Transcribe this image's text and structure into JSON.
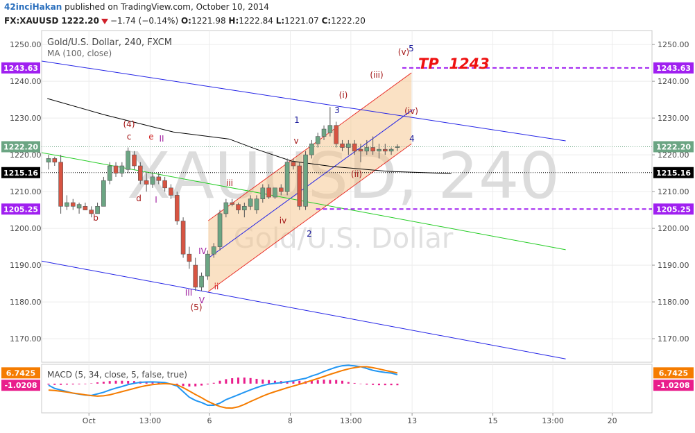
{
  "chart_data": {
    "type": "candlestick",
    "header": {
      "author": "42inciHakan",
      "published": "published on TradingView.com, October 10, 2014",
      "symbol": "FX:XAUUSD",
      "last": "1222.20",
      "change": "−1.74 (−0.14%)",
      "ohlc": [
        {
          "label": "O:",
          "value": "1221.98"
        },
        {
          "label": "H:",
          "value": "1222.84"
        },
        {
          "label": "L:",
          "value": "1221.07"
        },
        {
          "label": "C:",
          "value": "1222.20"
        }
      ]
    },
    "title": "Gold/U.S. Dollar, 240, FXCM",
    "indicator": "MA (100, close)",
    "watermark": [
      "XAUUSD, 240",
      "Gold/U.S. Dollar"
    ],
    "up_color": "#6ba583",
    "down_color": "#d75442",
    "open": [
      1218,
      1219,
      1218,
      1206,
      1207,
      1205.5,
      1206,
      1205,
      1204,
      1206,
      1213,
      1217,
      1215,
      1216,
      1220,
      1217,
      1213,
      1212,
      1214,
      1213,
      1211,
      1209,
      1202,
      1193,
      1190,
      1184,
      1187,
      1193,
      1195,
      1204,
      1207,
      1206.5,
      1205,
      1206,
      1205,
      1208,
      1211,
      1208.5,
      1211,
      1210,
      1218,
      1217,
      1206,
      1220,
      1223,
      1225,
      1226,
      1228,
      1223,
      1222,
      1223,
      1221.5,
      1221,
      1222,
      1221,
      1221.5,
      1221,
      1221.98
    ],
    "high": [
      1220,
      1219.5,
      1220,
      1209,
      1208,
      1207,
      1207,
      1206,
      1207,
      1214,
      1218,
      1218,
      1218,
      1222,
      1221,
      1218,
      1215,
      1215,
      1215,
      1214,
      1212,
      1210,
      1203,
      1195,
      1192,
      1188,
      1194,
      1196,
      1205,
      1208,
      1208,
      1207,
      1207,
      1209,
      1209,
      1212,
      1212,
      1211,
      1212,
      1219,
      1219,
      1218,
      1221,
      1224,
      1226,
      1228,
      1233,
      1229,
      1224,
      1224,
      1224,
      1223,
      1224,
      1225,
      1223,
      1223,
      1222,
      1222.84
    ],
    "low": [
      1216,
      1217,
      1204,
      1205,
      1205,
      1204,
      1205,
      1203,
      1204,
      1206,
      1212,
      1214,
      1214,
      1215,
      1216,
      1212,
      1210,
      1211,
      1212,
      1210,
      1208,
      1201,
      1192,
      1189,
      1183,
      1183,
      1186,
      1192,
      1194,
      1203,
      1206,
      1204,
      1203,
      1205,
      1204,
      1207,
      1208,
      1208,
      1209,
      1209,
      1216,
      1205,
      1205,
      1219,
      1222,
      1224,
      1225,
      1222,
      1221,
      1220,
      1220,
      1218,
      1220,
      1220,
      1219,
      1220,
      1220,
      1221.07
    ],
    "close": [
      1219,
      1218,
      1206,
      1207,
      1206,
      1206.5,
      1205,
      1204,
      1206,
      1213,
      1217,
      1215,
      1217,
      1221,
      1217,
      1213,
      1212,
      1214,
      1213,
      1211,
      1209,
      1202,
      1193,
      1191,
      1184,
      1187,
      1193,
      1195,
      1204,
      1207,
      1206.5,
      1205,
      1206,
      1208,
      1208,
      1211,
      1208.5,
      1211,
      1210,
      1218,
      1217,
      1206,
      1220,
      1223,
      1225,
      1227,
      1228,
      1223,
      1222,
      1223,
      1221,
      1221,
      1222,
      1221,
      1221.5,
      1221,
      1221.5,
      1222.2
    ],
    "xlim": [
      -1.13,
      98.6
    ],
    "xticks": [
      {
        "value": 6.6,
        "label": "Oct"
      },
      {
        "value": 16.6,
        "label": "13:00"
      },
      {
        "value": 26.3,
        "label": "6"
      },
      {
        "value": 39.5,
        "label": "8"
      },
      {
        "value": 49.4,
        "label": "13:00"
      },
      {
        "value": 59.4,
        "label": "13"
      },
      {
        "value": 72.6,
        "label": "15"
      },
      {
        "value": 82.4,
        "label": "13:00"
      },
      {
        "value": 92.1,
        "label": "20"
      }
    ],
    "ylim": [
      1163.6,
      1253.8
    ],
    "yticks": [
      {
        "value": 1170,
        "label": "1170.00"
      },
      {
        "value": 1180,
        "label": "1180.00"
      },
      {
        "value": 1190,
        "label": "1190.00"
      },
      {
        "value": 1200,
        "label": "1200.00"
      },
      {
        "value": 1210,
        "label": "1210.00"
      },
      {
        "value": 1220,
        "label": "1220.00"
      },
      {
        "value": 1230,
        "label": "1230.00"
      },
      {
        "value": 1240,
        "label": "1240.00"
      },
      {
        "value": 1250,
        "label": "1250.00"
      }
    ],
    "grid": true,
    "ma": {
      "color": "#000000",
      "points": [
        [
          -0.2,
          1235.3
        ],
        [
          9.1,
          1230.9
        ],
        [
          20.4,
          1226.2
        ],
        [
          29.5,
          1224.3
        ],
        [
          34,
          1221.5
        ],
        [
          39.7,
          1218.3
        ],
        [
          46.5,
          1216.8
        ],
        [
          55.6,
          1215.5
        ],
        [
          65.8,
          1214.9
        ]
      ]
    },
    "lines": [
      {
        "color": "#2323e6",
        "points": [
          [
            -1.13,
            1245.5
          ],
          [
            84.5,
            1223.8
          ]
        ]
      },
      {
        "color": "#2323e6",
        "points": [
          [
            -1.13,
            1191.1
          ],
          [
            84.5,
            1164.5
          ]
        ]
      },
      {
        "color": "#2323e6",
        "points": [
          [
            26.1,
            1191.9
          ],
          [
            59.5,
            1232.3
          ]
        ]
      },
      {
        "color": "#22cc22",
        "points": [
          [
            -1.13,
            1220.6
          ],
          [
            84.5,
            1194.2
          ]
        ]
      }
    ],
    "channel": {
      "color": "#e8302a",
      "fill": "#f5c48a",
      "upper": [
        [
          26.1,
          1202.1
        ],
        [
          59.3,
          1242.3
        ]
      ],
      "lower": [
        [
          26.1,
          1182.8
        ],
        [
          59.3,
          1223.0
        ]
      ]
    },
    "levels": [
      {
        "value": 1243.63,
        "label": "1243.63",
        "color": "#a020f0",
        "style": "dashed",
        "start": 57.8
      },
      {
        "value": 1222.2,
        "label": "1222.20",
        "color": "#6ba583",
        "style": "dotted"
      },
      {
        "value": 1215.16,
        "label": "1215.16",
        "color": "#000000",
        "style": "dotted"
      },
      {
        "value": 1205.25,
        "label": "1205.25",
        "color": "#a020f0",
        "style": "dashed",
        "start": 43.7
      }
    ],
    "annotations": [
      "(4)",
      "c",
      "b",
      "d",
      "e",
      "II",
      "I",
      "iii",
      "IV",
      "III",
      "V",
      "(5)",
      "ii",
      "iv",
      "2",
      "v",
      "1",
      "(i)",
      "3",
      "(iii)",
      "(v)",
      "5",
      "(iv)",
      "4",
      "(ii)",
      "TP  1243"
    ],
    "macd": {
      "title": "MACD (5, 34, close, 5, false, true)",
      "ylim": [
        -18.3,
        12.1
      ],
      "series": [
        {
          "color": "#2196f3",
          "values": [
            -1,
            -3,
            -4,
            -5,
            -6,
            -6.6,
            -7.2,
            -7.4,
            -6.4,
            -5.4,
            -4,
            -2.8,
            -1.8,
            -0.6,
            0.2,
            0.8,
            1,
            1.1,
            0.9,
            0.7,
            -0.3,
            -1.5,
            -5,
            -8.5,
            -10.5,
            -11.8,
            -13.5,
            -13.5,
            -12.2,
            -10,
            -8.5,
            -7,
            -5.4,
            -3.9,
            -2.5,
            -1.2,
            -0.3,
            0.2,
            0.6,
            1.2,
            1.7,
            2.6,
            3.3,
            4.8,
            6,
            7.6,
            9,
            10.3,
            11.2,
            11.5,
            11.1,
            10.6,
            9.5,
            8.3,
            7.6,
            7,
            6.6,
            5.6
          ]
        },
        {
          "color": "#f57c00",
          "value_label": "6.7425",
          "values": [
            -4,
            -4.3,
            -4.8,
            -5.3,
            -5.9,
            -6.4,
            -7,
            -7.5,
            -7.8,
            -7.6,
            -7,
            -6,
            -5,
            -4,
            -3,
            -2,
            -1.2,
            -0.6,
            -0.2,
            0,
            -0.2,
            -0.8,
            -2.5,
            -4.6,
            -6.8,
            -8.8,
            -11,
            -12.8,
            -14.3,
            -15.2,
            -15.3,
            -14.5,
            -13,
            -11.2,
            -9.5,
            -7.8,
            -6.3,
            -5,
            -3.8,
            -2.6,
            -1.5,
            -0.4,
            0.8,
            2,
            3.2,
            4.5,
            5.8,
            7,
            8.2,
            9.2,
            10,
            10.6,
            10.6,
            10,
            9.2,
            8.3,
            7.5,
            6.7425
          ]
        }
      ],
      "histogram": {
        "color": "#e91e8c",
        "value_label": "-1.0208",
        "values": [
          -0.6,
          -0.8,
          -0.8,
          -0.6,
          -0.5,
          -0.4,
          -0.3,
          0.2,
          0.8,
          1.2,
          1.6,
          1.8,
          1.8,
          1.7,
          1.6,
          1.4,
          1.2,
          1,
          0.6,
          0.4,
          -0.2,
          -0.8,
          -1.5,
          -1.8,
          -1.7,
          -1.2,
          -0.5,
          0.5,
          1.8,
          2.8,
          3.4,
          3.8,
          3.8,
          3.5,
          3,
          2.6,
          2.2,
          1.8,
          1.6,
          1.5,
          1.6,
          1.8,
          1.5,
          2,
          2.2,
          2.5,
          2.3,
          2.3,
          1.8,
          1,
          0.4,
          -0.2,
          -0.6,
          -0.8,
          -1,
          -1,
          -1,
          -1.0208
        ]
      }
    }
  }
}
